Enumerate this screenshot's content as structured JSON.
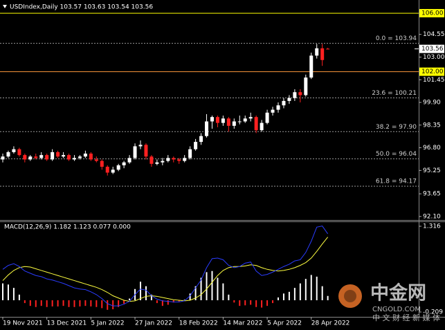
{
  "chart_data": [
    {
      "type": "candlestick",
      "title": "USDIndex,Daily 103.57 103.63 103.54 103.56",
      "categories": [
        "19 Nov 2021",
        null,
        null,
        null,
        null,
        null,
        null,
        null,
        "13 Dec 2021",
        null,
        null,
        null,
        null,
        null,
        null,
        null,
        "5 Jan 2022",
        null,
        null,
        null,
        null,
        null,
        null,
        null,
        "27 Jan 2022",
        null,
        null,
        null,
        null,
        null,
        null,
        null,
        "18 Feb 2022",
        null,
        null,
        null,
        null,
        null,
        null,
        null,
        "14 Mar 2022",
        null,
        null,
        null,
        null,
        null,
        null,
        null,
        "5 Apr 2022",
        null,
        null,
        null,
        null,
        null,
        null,
        null,
        "28 Apr 2022",
        null,
        null,
        null
      ],
      "open": [
        96.0,
        96.2,
        96.5,
        96.7,
        96.3,
        96.0,
        96.2,
        96.1,
        96.3,
        96.0,
        96.5,
        96.2,
        96.3,
        96.0,
        96.1,
        96.2,
        96.4,
        96.0,
        95.9,
        95.5,
        95.1,
        95.3,
        95.6,
        95.8,
        96.1,
        96.9,
        97.0,
        96.2,
        95.7,
        95.8,
        95.9,
        96.1,
        96.0,
        95.9,
        96.1,
        96.7,
        97.2,
        97.6,
        98.6,
        98.9,
        98.5,
        98.8,
        98.3,
        98.6,
        98.6,
        98.8,
        98.9,
        98.0,
        98.5,
        99.2,
        99.4,
        99.7,
        100.0,
        100.2,
        100.6,
        100.4,
        101.6,
        103.1,
        103.6,
        103.57
      ],
      "high": [
        96.4,
        96.6,
        96.9,
        96.8,
        96.4,
        96.3,
        96.4,
        96.5,
        96.4,
        96.7,
        96.6,
        96.5,
        96.4,
        96.3,
        96.3,
        96.6,
        96.5,
        96.2,
        96.0,
        95.6,
        95.5,
        95.7,
        95.9,
        96.3,
        97.1,
        97.3,
        97.1,
        96.3,
        96.0,
        96.1,
        96.3,
        96.2,
        96.1,
        96.3,
        96.9,
        97.4,
        97.8,
        99.1,
        99.0,
        99.0,
        99.0,
        98.9,
        98.8,
        99.0,
        99.0,
        99.2,
        99.0,
        98.7,
        99.4,
        99.6,
        99.9,
        100.2,
        100.4,
        100.8,
        100.8,
        101.8,
        103.3,
        103.9,
        103.9,
        103.63
      ],
      "low": [
        95.8,
        96.1,
        96.4,
        96.2,
        95.8,
        95.9,
        96.0,
        96.0,
        95.9,
        95.9,
        96.1,
        96.1,
        95.9,
        95.9,
        96.0,
        96.1,
        95.9,
        95.8,
        95.3,
        94.9,
        95.0,
        95.2,
        95.4,
        95.7,
        96.0,
        96.7,
        96.0,
        95.5,
        95.6,
        95.6,
        95.8,
        95.8,
        95.7,
        95.8,
        96.0,
        96.6,
        97.0,
        97.5,
        98.1,
        98.2,
        98.3,
        97.9,
        98.1,
        98.4,
        98.5,
        98.6,
        97.8,
        97.9,
        98.4,
        99.0,
        99.2,
        99.5,
        99.8,
        100.0,
        99.9,
        100.3,
        101.5,
        102.9,
        102.4,
        103.54
      ],
      "close": [
        96.2,
        96.5,
        96.7,
        96.3,
        96.0,
        96.2,
        96.1,
        96.3,
        96.0,
        96.5,
        96.2,
        96.3,
        96.0,
        96.1,
        96.2,
        96.4,
        96.0,
        95.9,
        95.5,
        95.1,
        95.3,
        95.6,
        95.8,
        96.1,
        96.9,
        97.0,
        96.2,
        95.7,
        95.8,
        95.9,
        96.1,
        96.0,
        95.9,
        96.1,
        96.7,
        97.2,
        97.6,
        98.6,
        98.9,
        98.5,
        98.8,
        98.3,
        98.6,
        98.6,
        98.8,
        98.9,
        98.0,
        98.5,
        99.2,
        99.4,
        99.7,
        100.0,
        100.2,
        100.6,
        100.4,
        101.6,
        103.1,
        103.6,
        102.8,
        103.56
      ],
      "up_color": "#ffffff",
      "down_color": "#ff2020",
      "ylim": [
        91.86,
        106.24
      ],
      "yticks": [
        {
          "value": 104.55,
          "label": "104.55"
        },
        {
          "value": 103.0,
          "label": "103.00"
        },
        {
          "value": 101.45,
          "label": "101.45"
        },
        {
          "value": 99.9,
          "label": "99.90"
        },
        {
          "value": 98.35,
          "label": "98.35"
        },
        {
          "value": 96.8,
          "label": "96.80"
        },
        {
          "value": 95.25,
          "label": "95.25"
        },
        {
          "value": 93.65,
          "label": "93.65"
        },
        {
          "value": 92.1,
          "label": "92.10"
        }
      ],
      "hlines": [
        {
          "value": 106.0,
          "label": "106.00",
          "color": "#ffff00"
        },
        {
          "value": 102.0,
          "label": "102.00",
          "color": "#ff9a3c"
        }
      ],
      "last_price": {
        "value": 103.56,
        "label": "103.56"
      },
      "fib_levels": [
        {
          "value": 103.94,
          "label": "0.0 = 103.94"
        },
        {
          "value": 100.21,
          "label": "23.6 = 100.21"
        },
        {
          "value": 97.9,
          "label": "38.2 = 97.90"
        },
        {
          "value": 96.04,
          "label": "50.0 = 96.04"
        },
        {
          "value": 94.17,
          "label": "61.8 = 94.17"
        }
      ]
    },
    {
      "type": "macd",
      "title": "MACD(12,26,9) 1.182 1.123 0.077 0.000",
      "histogram": {
        "up_color": "#ffffff",
        "down_color": "#ff2020",
        "values": [
          0.3,
          0.28,
          0.22,
          0.1,
          -0.05,
          -0.1,
          -0.12,
          -0.1,
          -0.12,
          -0.11,
          -0.11,
          -0.1,
          -0.12,
          -0.12,
          -0.11,
          -0.1,
          -0.11,
          -0.12,
          -0.14,
          -0.17,
          -0.16,
          -0.12,
          -0.06,
          0.03,
          0.2,
          0.33,
          0.25,
          0.1,
          -0.05,
          -0.1,
          -0.08,
          -0.04,
          -0.02,
          0.01,
          0.12,
          0.25,
          0.4,
          0.5,
          0.52,
          0.4,
          0.3,
          0.1,
          -0.04,
          -0.1,
          -0.09,
          -0.08,
          -0.12,
          -0.13,
          -0.1,
          -0.05,
          0.05,
          0.12,
          0.15,
          0.22,
          0.3,
          0.38,
          0.45,
          0.42,
          0.25,
          0.077
        ]
      },
      "main": {
        "color": "#2a3cff",
        "values": [
          0.55,
          0.62,
          0.65,
          0.6,
          0.52,
          0.48,
          0.44,
          0.42,
          0.38,
          0.36,
          0.33,
          0.3,
          0.26,
          0.22,
          0.2,
          0.19,
          0.15,
          0.1,
          0.03,
          -0.06,
          -0.1,
          -0.1,
          -0.07,
          -0.02,
          0.1,
          0.2,
          0.18,
          0.08,
          0.02,
          -0.01,
          -0.02,
          -0.03,
          -0.03,
          -0.01,
          0.08,
          0.22,
          0.36,
          0.58,
          0.74,
          0.75,
          0.72,
          0.62,
          0.58,
          0.6,
          0.66,
          0.68,
          0.52,
          0.44,
          0.46,
          0.5,
          0.55,
          0.6,
          0.64,
          0.7,
          0.72,
          0.85,
          1.05,
          1.3,
          1.32,
          1.182
        ]
      },
      "signal": {
        "color": "#ffff40",
        "values": [
          0.35,
          0.45,
          0.53,
          0.58,
          0.6,
          0.59,
          0.56,
          0.53,
          0.5,
          0.47,
          0.44,
          0.41,
          0.38,
          0.35,
          0.32,
          0.29,
          0.26,
          0.23,
          0.19,
          0.14,
          0.08,
          0.04,
          0.0,
          -0.02,
          -0.01,
          0.03,
          0.07,
          0.08,
          0.07,
          0.05,
          0.03,
          0.01,
          0.0,
          -0.01,
          0.0,
          0.04,
          0.1,
          0.2,
          0.32,
          0.44,
          0.53,
          0.58,
          0.6,
          0.6,
          0.61,
          0.63,
          0.62,
          0.58,
          0.55,
          0.53,
          0.52,
          0.53,
          0.55,
          0.58,
          0.62,
          0.67,
          0.75,
          0.87,
          1.0,
          1.123
        ]
      },
      "ylim": [
        -0.295,
        1.39
      ],
      "yticks": [
        1.316,
        -0.209
      ]
    }
  ],
  "watermark": {
    "brand": "中金网",
    "site": "CNGOLD.COM",
    "slogan": "中 文 财 经 新 媒 体"
  }
}
